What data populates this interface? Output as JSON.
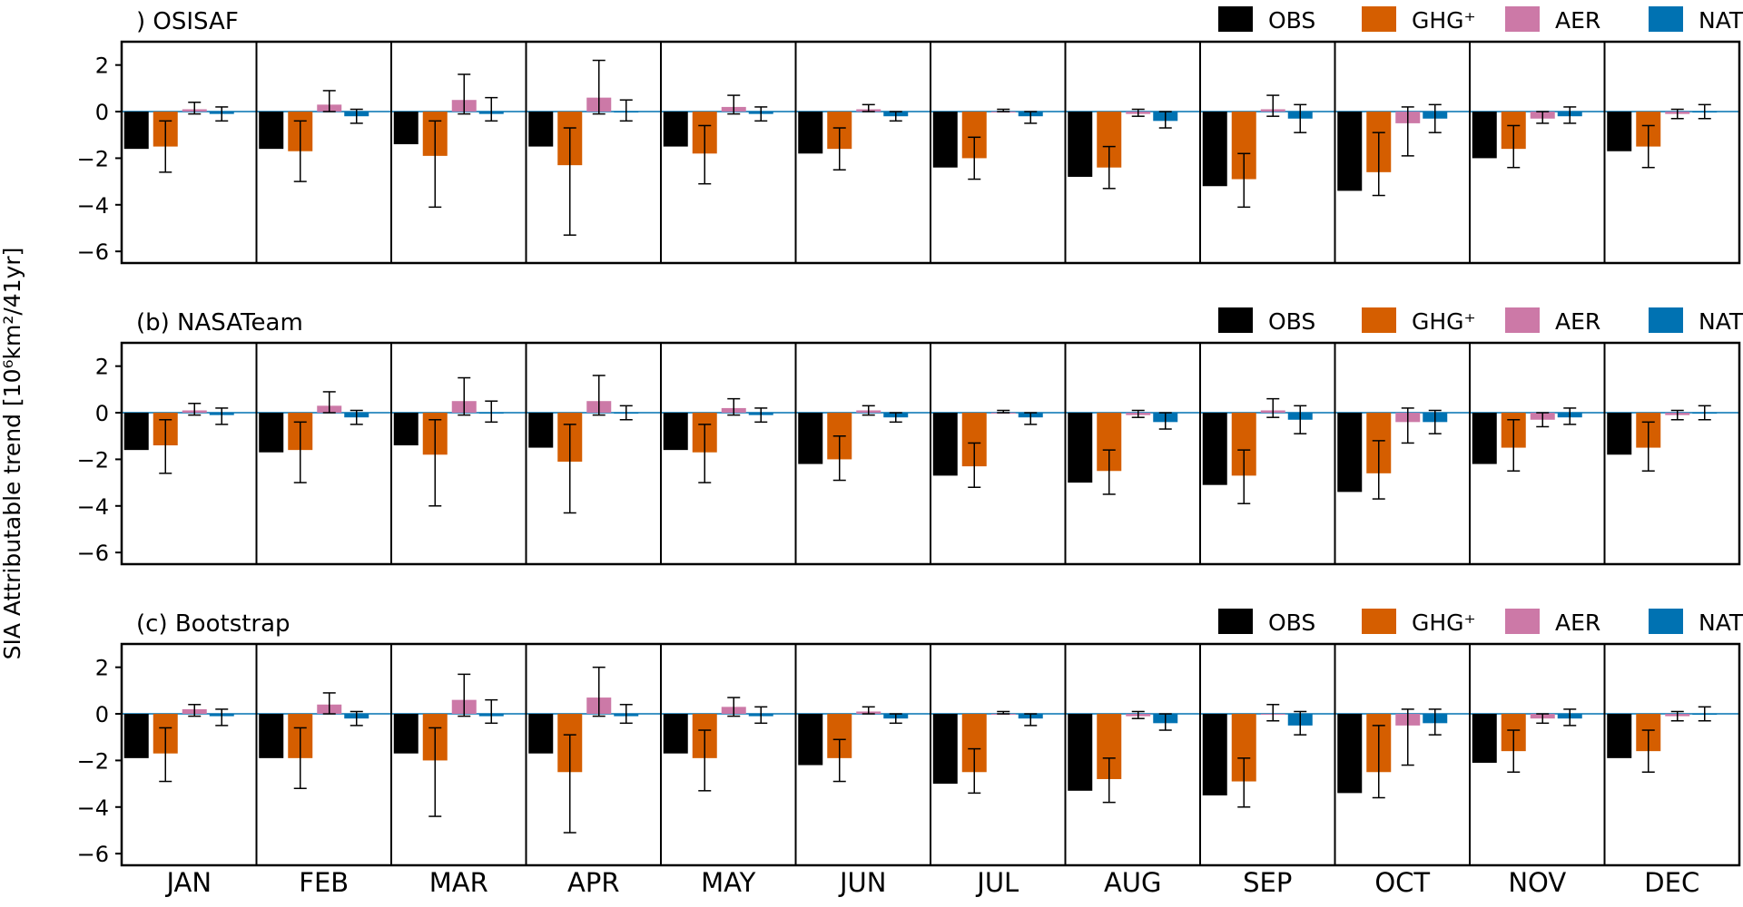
{
  "figure": {
    "ylabel": "SIA Attributable trend [10⁶km²/41yr]",
    "months": [
      "JAN",
      "FEB",
      "MAR",
      "APR",
      "MAY",
      "JUN",
      "JUL",
      "AUG",
      "SEP",
      "OCT",
      "NOV",
      "DEC"
    ],
    "legend": [
      {
        "key": "OBS",
        "label": "OBS",
        "color": "#000000"
      },
      {
        "key": "GHG",
        "label": "GHG⁺",
        "color": "#d55e00"
      },
      {
        "key": "AER",
        "label": "AER",
        "color": "#cc79a7"
      },
      {
        "key": "NAT",
        "label": "NAT",
        "color": "#0072b2"
      }
    ]
  },
  "chart_data": [
    {
      "type": "bar",
      "title": ") OSISAF",
      "categories": [
        "JAN",
        "FEB",
        "MAR",
        "APR",
        "MAY",
        "JUN",
        "JUL",
        "AUG",
        "SEP",
        "OCT",
        "NOV",
        "DEC"
      ],
      "ylim": [
        -6.5,
        3
      ],
      "yticks": [
        2,
        0,
        -2,
        -4,
        -6
      ],
      "series": [
        {
          "name": "OBS",
          "values": [
            -1.6,
            -1.6,
            -1.4,
            -1.5,
            -1.5,
            -1.8,
            -2.4,
            -2.8,
            -3.2,
            -3.4,
            -2.0,
            -1.7
          ]
        },
        {
          "name": "GHG⁺",
          "values": [
            -1.5,
            -1.7,
            -1.9,
            -2.3,
            -1.8,
            -1.6,
            -2.0,
            -2.4,
            -2.9,
            -2.6,
            -1.6,
            -1.5
          ],
          "err_low": [
            -2.6,
            -3.0,
            -4.1,
            -5.3,
            -3.1,
            -2.5,
            -2.9,
            -3.3,
            -4.1,
            -3.6,
            -2.4,
            -2.4
          ],
          "err_high": [
            -0.4,
            -0.4,
            -0.4,
            -0.7,
            -0.6,
            -0.7,
            -1.1,
            -1.5,
            -1.8,
            -0.9,
            -0.6,
            -0.6
          ]
        },
        {
          "name": "AER",
          "values": [
            0.1,
            0.3,
            0.5,
            0.6,
            0.2,
            0.1,
            0.0,
            -0.1,
            0.1,
            -0.5,
            -0.3,
            -0.1
          ],
          "err_low": [
            -0.1,
            0.0,
            -0.1,
            -0.1,
            -0.1,
            0.0,
            0.0,
            -0.2,
            -0.2,
            -1.9,
            -0.5,
            -0.3
          ],
          "err_high": [
            0.4,
            0.9,
            1.6,
            2.2,
            0.7,
            0.3,
            0.1,
            0.1,
            0.7,
            0.2,
            0.0,
            0.1
          ]
        },
        {
          "name": "NAT",
          "values": [
            -0.1,
            -0.2,
            -0.1,
            0.0,
            -0.1,
            -0.2,
            -0.2,
            -0.4,
            -0.3,
            -0.3,
            -0.2,
            0.0
          ],
          "err_low": [
            -0.4,
            -0.5,
            -0.4,
            -0.4,
            -0.4,
            -0.4,
            -0.5,
            -0.7,
            -0.9,
            -0.9,
            -0.5,
            -0.3
          ],
          "err_high": [
            0.2,
            0.1,
            0.6,
            0.5,
            0.2,
            0.0,
            0.0,
            0.0,
            0.3,
            0.3,
            0.2,
            0.3
          ]
        }
      ]
    },
    {
      "type": "bar",
      "title": "(b) NASATeam",
      "categories": [
        "JAN",
        "FEB",
        "MAR",
        "APR",
        "MAY",
        "JUN",
        "JUL",
        "AUG",
        "SEP",
        "OCT",
        "NOV",
        "DEC"
      ],
      "ylim": [
        -6.5,
        3
      ],
      "yticks": [
        2,
        0,
        -2,
        -4,
        -6
      ],
      "series": [
        {
          "name": "OBS",
          "values": [
            -1.6,
            -1.7,
            -1.4,
            -1.5,
            -1.6,
            -2.2,
            -2.7,
            -3.0,
            -3.1,
            -3.4,
            -2.2,
            -1.8
          ]
        },
        {
          "name": "GHG⁺",
          "values": [
            -1.4,
            -1.6,
            -1.8,
            -2.1,
            -1.7,
            -2.0,
            -2.3,
            -2.5,
            -2.7,
            -2.6,
            -1.5,
            -1.5
          ],
          "err_low": [
            -2.6,
            -3.0,
            -4.0,
            -4.3,
            -3.0,
            -2.9,
            -3.2,
            -3.5,
            -3.9,
            -3.7,
            -2.5,
            -2.5
          ],
          "err_high": [
            -0.3,
            -0.4,
            -0.3,
            -0.5,
            -0.5,
            -1.0,
            -1.3,
            -1.6,
            -1.6,
            -1.2,
            -0.3,
            -0.4
          ]
        },
        {
          "name": "AER",
          "values": [
            0.1,
            0.3,
            0.5,
            0.5,
            0.2,
            0.1,
            0.0,
            -0.1,
            0.1,
            -0.4,
            -0.3,
            -0.1
          ],
          "err_low": [
            -0.1,
            0.0,
            -0.1,
            -0.1,
            -0.1,
            -0.1,
            0.0,
            -0.2,
            -0.2,
            -1.3,
            -0.6,
            -0.3
          ],
          "err_high": [
            0.4,
            0.9,
            1.5,
            1.6,
            0.6,
            0.3,
            0.1,
            0.1,
            0.6,
            0.2,
            0.0,
            0.1
          ]
        },
        {
          "name": "NAT",
          "values": [
            -0.1,
            -0.2,
            0.0,
            0.0,
            -0.1,
            -0.2,
            -0.2,
            -0.4,
            -0.3,
            -0.4,
            -0.2,
            0.0
          ],
          "err_low": [
            -0.5,
            -0.5,
            -0.4,
            -0.3,
            -0.4,
            -0.4,
            -0.5,
            -0.7,
            -0.9,
            -0.9,
            -0.5,
            -0.3
          ],
          "err_high": [
            0.2,
            0.1,
            0.5,
            0.3,
            0.2,
            0.0,
            0.0,
            0.0,
            0.3,
            0.1,
            0.2,
            0.3
          ]
        }
      ]
    },
    {
      "type": "bar",
      "title": "(c) Bootstrap",
      "categories": [
        "JAN",
        "FEB",
        "MAR",
        "APR",
        "MAY",
        "JUN",
        "JUL",
        "AUG",
        "SEP",
        "OCT",
        "NOV",
        "DEC"
      ],
      "ylim": [
        -6.5,
        3
      ],
      "yticks": [
        2,
        0,
        -2,
        -4,
        -6
      ],
      "series": [
        {
          "name": "OBS",
          "values": [
            -1.9,
            -1.9,
            -1.7,
            -1.7,
            -1.7,
            -2.2,
            -3.0,
            -3.3,
            -3.5,
            -3.4,
            -2.1,
            -1.9
          ]
        },
        {
          "name": "GHG⁺",
          "values": [
            -1.7,
            -1.9,
            -2.0,
            -2.5,
            -1.9,
            -1.9,
            -2.5,
            -2.8,
            -2.9,
            -2.5,
            -1.6,
            -1.6
          ],
          "err_low": [
            -2.9,
            -3.2,
            -4.4,
            -5.1,
            -3.3,
            -2.9,
            -3.4,
            -3.8,
            -4.0,
            -3.6,
            -2.5,
            -2.5
          ],
          "err_high": [
            -0.6,
            -0.6,
            -0.6,
            -0.9,
            -0.7,
            -1.1,
            -1.5,
            -1.9,
            -1.9,
            -0.5,
            -0.7,
            -0.7
          ]
        },
        {
          "name": "AER",
          "values": [
            0.2,
            0.4,
            0.6,
            0.7,
            0.3,
            0.1,
            0.0,
            -0.1,
            0.0,
            -0.5,
            -0.2,
            -0.1
          ],
          "err_low": [
            -0.1,
            0.0,
            -0.1,
            -0.1,
            -0.1,
            0.0,
            0.0,
            -0.2,
            -0.3,
            -2.2,
            -0.4,
            -0.3
          ],
          "err_high": [
            0.4,
            0.9,
            1.7,
            2.0,
            0.7,
            0.3,
            0.1,
            0.1,
            0.4,
            0.2,
            0.0,
            0.1
          ]
        },
        {
          "name": "NAT",
          "values": [
            -0.1,
            -0.2,
            -0.1,
            -0.1,
            -0.1,
            -0.2,
            -0.2,
            -0.4,
            -0.5,
            -0.4,
            -0.2,
            0.0
          ],
          "err_low": [
            -0.5,
            -0.5,
            -0.4,
            -0.4,
            -0.4,
            -0.4,
            -0.5,
            -0.7,
            -0.9,
            -0.9,
            -0.5,
            -0.3
          ],
          "err_high": [
            0.2,
            0.1,
            0.6,
            0.4,
            0.3,
            0.0,
            0.0,
            0.0,
            0.1,
            0.2,
            0.2,
            0.3
          ]
        }
      ]
    }
  ]
}
